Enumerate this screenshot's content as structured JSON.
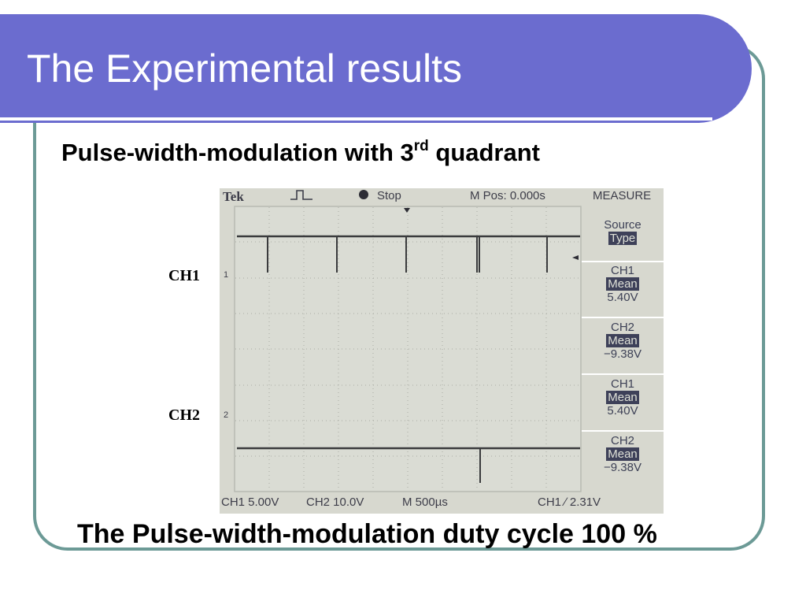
{
  "slide": {
    "title": "The Experimental results",
    "subtitle_main": "Pulse-width-modulation with 3",
    "subtitle_sup": "rd",
    "subtitle_tail": " quadrant",
    "caption": "The Pulse-width-modulation duty cycle 100 %",
    "ch1_label": "CH1",
    "ch2_label": "CH2"
  },
  "scope": {
    "brand": "Tek",
    "status": "Stop",
    "mpos": "M Pos: 0.000s",
    "menu_title": "MEASURE",
    "source_label": "Source",
    "type_label": "Type",
    "measurements": [
      {
        "channel": "CH1",
        "type": "Mean",
        "value": "5.40V"
      },
      {
        "channel": "CH2",
        "type": "Mean",
        "value": "−9.38V"
      },
      {
        "channel": "CH1",
        "type": "Mean",
        "value": "5.40V"
      },
      {
        "channel": "CH2",
        "type": "Mean",
        "value": "−9.38V"
      }
    ],
    "ch1_marker": "1",
    "ch2_marker": "2",
    "bottom": {
      "ch1_scale": "CH1  5.00V",
      "ch2_scale": "CH2  10.0V",
      "time_scale": "M 500µs",
      "trigger": "CH1  ∕  2.31V"
    }
  }
}
